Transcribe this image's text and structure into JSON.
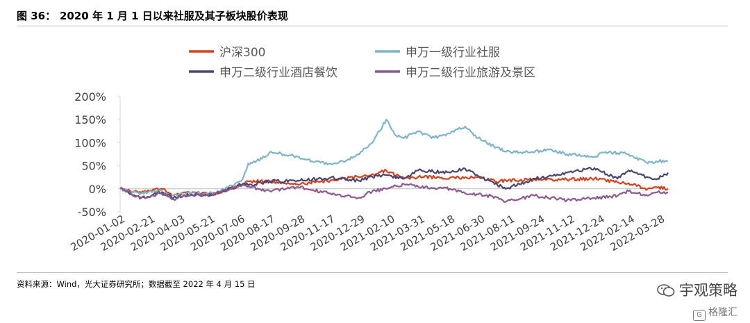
{
  "figure": {
    "number": "图 36：",
    "title": "2020 年 1 月 1 日以来社服及其子板块股价表现",
    "source": "资料来源：Wind，光大证券研究所；数据截至 2022 年 4 月 15 日"
  },
  "watermark": {
    "wechat_icon": "wechat-icon",
    "main": "宇观策略",
    "sub_icon": "gelonghui-icon",
    "sub": "格隆汇"
  },
  "chart_data": {
    "type": "line",
    "title": "",
    "xlabel": "",
    "ylabel": "",
    "ylim": [
      -50,
      200
    ],
    "y_ticks": [
      -50,
      0,
      50,
      100,
      150,
      200
    ],
    "y_tick_labels": [
      "-50%",
      "0%",
      "50%",
      "100%",
      "150%",
      "200%"
    ],
    "x_tick_labels": [
      "2020-01-02",
      "2020-02-21",
      "2020-04-03",
      "2020-05-21",
      "2020-07-06",
      "2020-08-17",
      "2020-09-28",
      "2020-11-17",
      "2020-12-29",
      "2021-02-10",
      "2021-03-31",
      "2021-05-18",
      "2021-06-30",
      "2021-08-11",
      "2021-09-24",
      "2021-11-12",
      "2021-12-24",
      "2022-02-14",
      "2022-03-28"
    ],
    "x_range": [
      "2020-01-02",
      "2022-04-15"
    ],
    "zero_line": true,
    "grid": false,
    "legend_position": "top",
    "series": [
      {
        "name": "沪深300",
        "color": "#d2421f",
        "points": [
          [
            "2020-01-02",
            0
          ],
          [
            "2020-02-03",
            -8
          ],
          [
            "2020-03-05",
            0
          ],
          [
            "2020-03-23",
            -14
          ],
          [
            "2020-04-20",
            -8
          ],
          [
            "2020-05-21",
            -12
          ],
          [
            "2020-07-06",
            8
          ],
          [
            "2020-07-15",
            16
          ],
          [
            "2020-08-17",
            16
          ],
          [
            "2020-09-28",
            10
          ],
          [
            "2020-11-17",
            18
          ],
          [
            "2020-12-29",
            26
          ],
          [
            "2021-01-20",
            32
          ],
          [
            "2021-02-10",
            40
          ],
          [
            "2021-03-09",
            22
          ],
          [
            "2021-03-31",
            26
          ],
          [
            "2021-05-18",
            24
          ],
          [
            "2021-06-30",
            26
          ],
          [
            "2021-07-28",
            15
          ],
          [
            "2021-08-11",
            18
          ],
          [
            "2021-09-24",
            20
          ],
          [
            "2021-11-12",
            20
          ],
          [
            "2021-12-24",
            22
          ],
          [
            "2022-01-28",
            14
          ],
          [
            "2022-02-14",
            12
          ],
          [
            "2022-03-15",
            0
          ],
          [
            "2022-03-28",
            4
          ],
          [
            "2022-04-15",
            0
          ]
        ]
      },
      {
        "name": "申万一级行业社服",
        "color": "#7fb5c7",
        "points": [
          [
            "2020-01-02",
            0
          ],
          [
            "2020-02-03",
            -10
          ],
          [
            "2020-03-05",
            -4
          ],
          [
            "2020-03-23",
            -14
          ],
          [
            "2020-04-20",
            -8
          ],
          [
            "2020-05-21",
            -10
          ],
          [
            "2020-06-10",
            0
          ],
          [
            "2020-07-06",
            20
          ],
          [
            "2020-07-15",
            55
          ],
          [
            "2020-08-05",
            65
          ],
          [
            "2020-08-17",
            80
          ],
          [
            "2020-09-28",
            70
          ],
          [
            "2020-10-20",
            60
          ],
          [
            "2020-11-17",
            55
          ],
          [
            "2020-12-10",
            60
          ],
          [
            "2020-12-29",
            75
          ],
          [
            "2021-01-20",
            100
          ],
          [
            "2021-02-10",
            150
          ],
          [
            "2021-02-25",
            115
          ],
          [
            "2021-03-09",
            110
          ],
          [
            "2021-03-31",
            125
          ],
          [
            "2021-04-20",
            110
          ],
          [
            "2021-05-18",
            120
          ],
          [
            "2021-06-10",
            135
          ],
          [
            "2021-06-30",
            110
          ],
          [
            "2021-07-28",
            90
          ],
          [
            "2021-08-11",
            80
          ],
          [
            "2021-09-24",
            80
          ],
          [
            "2021-10-15",
            85
          ],
          [
            "2021-11-12",
            75
          ],
          [
            "2021-12-24",
            70
          ],
          [
            "2022-01-10",
            80
          ],
          [
            "2022-02-14",
            75
          ],
          [
            "2022-03-15",
            55
          ],
          [
            "2022-03-28",
            60
          ],
          [
            "2022-04-15",
            60
          ]
        ]
      },
      {
        "name": "申万二级行业酒店餐饮",
        "color": "#4b4570",
        "points": [
          [
            "2020-01-02",
            0
          ],
          [
            "2020-02-03",
            -20
          ],
          [
            "2020-03-05",
            -8
          ],
          [
            "2020-03-23",
            -20
          ],
          [
            "2020-04-20",
            -12
          ],
          [
            "2020-05-21",
            -14
          ],
          [
            "2020-07-06",
            10
          ],
          [
            "2020-07-15",
            8
          ],
          [
            "2020-08-17",
            16
          ],
          [
            "2020-09-28",
            18
          ],
          [
            "2020-11-17",
            24
          ],
          [
            "2020-12-29",
            18
          ],
          [
            "2021-01-20",
            26
          ],
          [
            "2021-02-10",
            30
          ],
          [
            "2021-03-09",
            22
          ],
          [
            "2021-03-31",
            40
          ],
          [
            "2021-05-18",
            35
          ],
          [
            "2021-06-10",
            44
          ],
          [
            "2021-06-30",
            28
          ],
          [
            "2021-08-11",
            0
          ],
          [
            "2021-09-24",
            22
          ],
          [
            "2021-11-12",
            35
          ],
          [
            "2021-12-24",
            45
          ],
          [
            "2022-01-28",
            22
          ],
          [
            "2022-02-14",
            40
          ],
          [
            "2022-03-15",
            25
          ],
          [
            "2022-03-28",
            20
          ],
          [
            "2022-04-15",
            35
          ]
        ]
      },
      {
        "name": "申万二级行业旅游及景区",
        "color": "#8c5a8f",
        "points": [
          [
            "2020-01-02",
            0
          ],
          [
            "2020-02-03",
            -20
          ],
          [
            "2020-03-05",
            -10
          ],
          [
            "2020-03-23",
            -22
          ],
          [
            "2020-04-20",
            -14
          ],
          [
            "2020-05-21",
            -12
          ],
          [
            "2020-07-06",
            8
          ],
          [
            "2020-08-17",
            -5
          ],
          [
            "2020-09-28",
            4
          ],
          [
            "2020-11-17",
            -10
          ],
          [
            "2020-12-29",
            -20
          ],
          [
            "2021-01-20",
            -5
          ],
          [
            "2021-02-10",
            0
          ],
          [
            "2021-03-09",
            10
          ],
          [
            "2021-03-31",
            4
          ],
          [
            "2021-05-18",
            0
          ],
          [
            "2021-06-10",
            -10
          ],
          [
            "2021-06-30",
            -12
          ],
          [
            "2021-07-28",
            -18
          ],
          [
            "2021-08-11",
            -28
          ],
          [
            "2021-09-24",
            -15
          ],
          [
            "2021-11-12",
            -25
          ],
          [
            "2021-12-24",
            -20
          ],
          [
            "2022-01-28",
            -15
          ],
          [
            "2022-02-14",
            -5
          ],
          [
            "2022-03-15",
            -15
          ],
          [
            "2022-03-28",
            -8
          ],
          [
            "2022-04-15",
            -8
          ]
        ]
      }
    ]
  }
}
